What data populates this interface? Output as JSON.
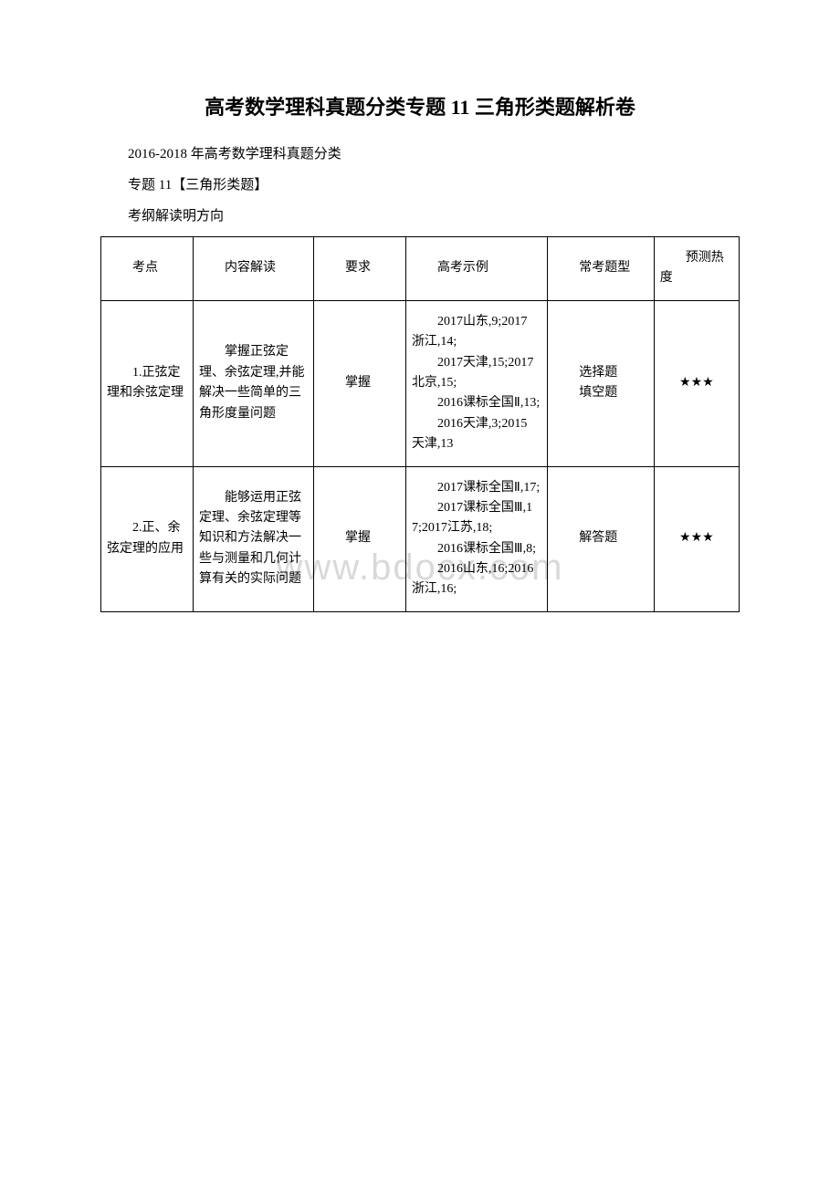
{
  "title": "高考数学理科真题分类专题 11 三角形类题解析卷",
  "line1": "2016-2018 年高考数学理科真题分类",
  "line2": "专题 11【三角形类题】",
  "line3": "考纲解读明方向",
  "watermark": "www.bdocx.com",
  "table": {
    "headers": {
      "c1": "考点",
      "c2": "内容解读",
      "c3": "要求",
      "c4": "高考示例",
      "c5": "常考题型",
      "c6": "预测热度"
    },
    "rows": [
      {
        "c1": "1.正弦定理和余弦定理",
        "c2": "掌握正弦定理、余弦定理,并能解决一些简单的三角形度量问题",
        "c3": "掌握",
        "c4": [
          "2017山东,9;2017 浙江,14;",
          "2017天津,15;2017北京,15;",
          "2016课标全国Ⅱ,13;",
          "2016天津,3;2015 天津,13"
        ],
        "c5": [
          "选择题",
          "填空题"
        ],
        "c6": "★★★"
      },
      {
        "c1": "2.正、余弦定理的应用",
        "c2": "能够运用正弦定理、余弦定理等知识和方法解决一些与测量和几何计算有关的实际问题",
        "c3": "掌握",
        "c4": [
          "2017课标全国Ⅱ,17;",
          "2017课标全国Ⅲ,17;2017江苏,18;",
          "2016课标全国Ⅲ,8;",
          "2016山东,16;2016浙江,16;"
        ],
        "c5": [
          "解答题"
        ],
        "c6": "★★★"
      }
    ]
  }
}
